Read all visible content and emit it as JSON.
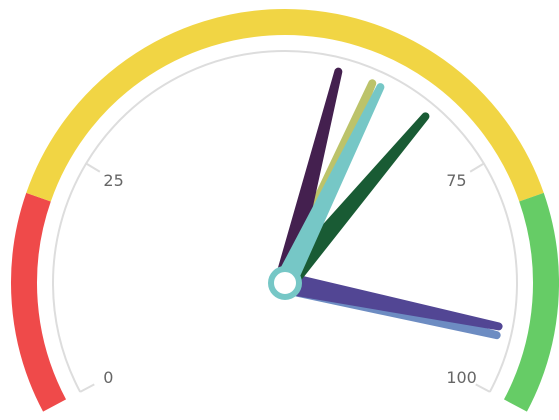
{
  "chart_data": {
    "type": "gauge",
    "range": [
      0,
      100
    ],
    "ticks": [
      {
        "value": 0,
        "label": "0"
      },
      {
        "value": 25,
        "label": "25"
      },
      {
        "value": 75,
        "label": "75"
      },
      {
        "value": 100,
        "label": "100"
      }
    ],
    "bands": [
      {
        "from": 0,
        "to": 20,
        "color": "#ef4a4a"
      },
      {
        "from": 20,
        "to": 80,
        "color": "#f1d544"
      },
      {
        "from": 80,
        "to": 100,
        "color": "#66cc66"
      }
    ],
    "needles": [
      {
        "value": 94,
        "color": "#6d8cc2"
      },
      {
        "value": 93,
        "color": "#524694"
      },
      {
        "value": 67,
        "color": "#195b34"
      },
      {
        "value": 60,
        "color": "#bcc36a"
      },
      {
        "value": 56,
        "color": "#44204f"
      },
      {
        "value": 61,
        "color": "#76c7c6"
      }
    ],
    "pivot_color": "#76c7c6"
  }
}
